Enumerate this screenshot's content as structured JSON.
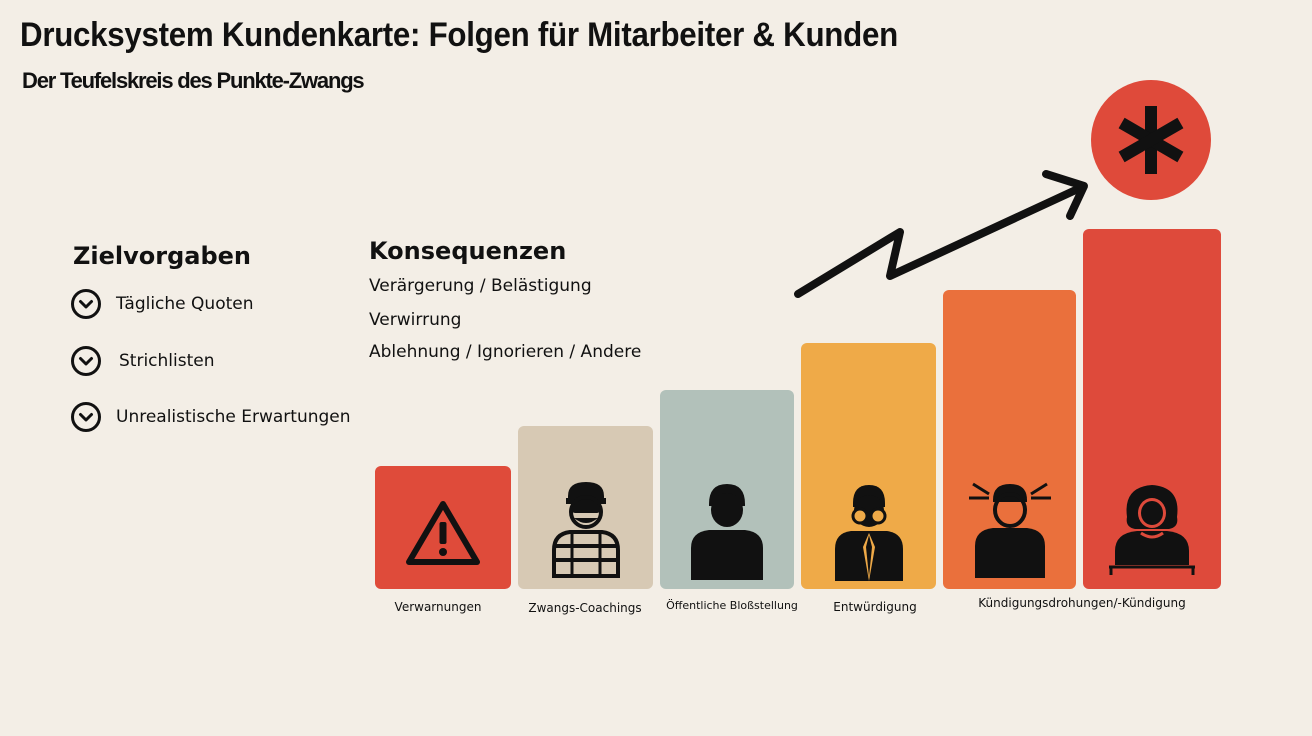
{
  "header": {
    "title": "Drucksystem Kundenkarte: Folgen für Mitarbeiter & Kunden",
    "subtitle": "Der Teufelskreis des Punkte-Zwangs"
  },
  "goals": {
    "title": "Zielvorgaben",
    "items": [
      "Tägliche Quoten",
      "Strichlisten",
      "Unrealistische Erwartungen"
    ]
  },
  "consequences": {
    "title": "Konsequenzen",
    "items": [
      "Verärgerung / Belästigung",
      "Verwirrung",
      "Ablehnung / Ignorieren / Andere"
    ]
  },
  "steps": [
    {
      "label": "Verwarnungen",
      "color": "#df4b3a",
      "icon": "warning-icon"
    },
    {
      "label": "Zwangs-Coachings",
      "color": "#d7c9b4",
      "icon": "coached-person-icon"
    },
    {
      "label": "Öffentliche Bloßstellung",
      "color": "#b2c1ba",
      "icon": "person-icon"
    },
    {
      "label": "Entwürdigung",
      "color": "#efaa48",
      "icon": "person-glasses-icon"
    },
    {
      "label": "Kündigungsdrohungen/-Kündigung",
      "color": "#ea703c",
      "icon": "stressed-person-icon"
    },
    {
      "label": "",
      "color": "#de4a3b",
      "icon": "woman-icon"
    }
  ],
  "accent": {
    "circle_color": "#df4a3a",
    "icon": "asterisk-icon",
    "arrow_icon": "zigzag-arrow-icon"
  }
}
